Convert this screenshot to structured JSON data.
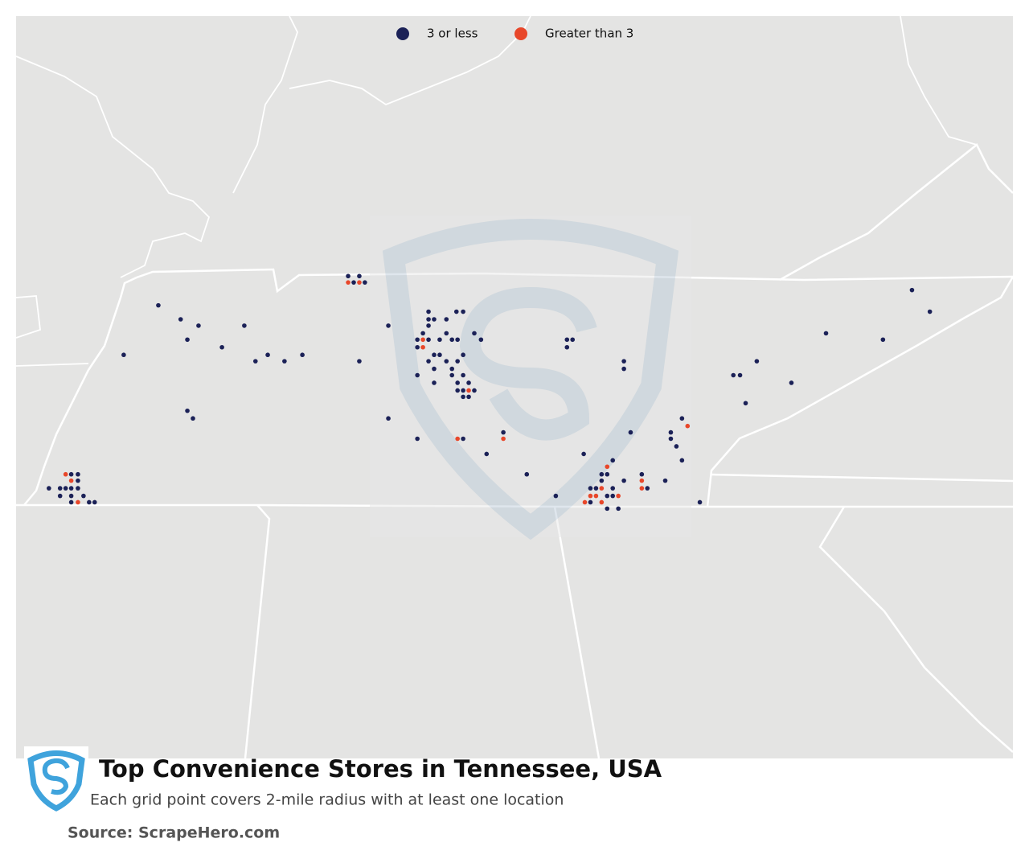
{
  "chart_data": {
    "type": "map",
    "title": "Top Convenience Stores in Tennessee, USA",
    "subtitle": "Each grid point covers 2-mile radius with at least one location",
    "source": "Source: ScrapeHero.com",
    "series": [
      {
        "name": "3 or less",
        "color": "#1b2157",
        "lon": [
          -87.58,
          -87.48,
          -87.53,
          -87.43,
          -89.28,
          -89.08,
          -88.92,
          -89.02,
          -88.51,
          -88.71,
          -89.59,
          -88.41,
          -88.3,
          -88.15,
          -87.99,
          -87.48,
          -89.02,
          -88.97,
          -87.22,
          -86.86,
          -86.61,
          -86.55,
          -86.86,
          -86.81,
          -86.7,
          -86.86,
          -86.7,
          -86.45,
          -86.39,
          -86.91,
          -86.96,
          -86.86,
          -86.76,
          -86.65,
          -86.6,
          -86.96,
          -86.81,
          -86.76,
          -86.55,
          -86.86,
          -86.7,
          -86.6,
          -86.65,
          -86.81,
          -86.96,
          -86.65,
          -86.55,
          -86.5,
          -86.6,
          -86.81,
          -86.6,
          -86.55,
          -86.45,
          -86.55,
          -86.5,
          -87.22,
          -86.96,
          -86.55,
          -86.19,
          -86.34,
          -85.98,
          -85.72,
          -85.62,
          -85.57,
          -85.62,
          -85.11,
          -85.11,
          -85.05,
          -85.47,
          -85.21,
          -85.31,
          -85.26,
          -85.31,
          -85.11,
          -84.95,
          -84.74,
          -85.41,
          -85.36,
          -85.21,
          -84.9,
          -85.26,
          -85.21,
          -85.41,
          -85.26,
          -85.16,
          -84.59,
          -84.69,
          -84.69,
          -84.64,
          -84.59,
          -84.43,
          -84.13,
          -84.07,
          -83.92,
          -84.02,
          -83.61,
          -83.3,
          -82.79,
          -82.53,
          -82.37,
          -90.06,
          -90.0,
          -90.0,
          -90.26,
          -90.16,
          -90.11,
          -90.06,
          -90.0,
          -90.16,
          -90.06,
          -89.95,
          -90.06,
          -89.9,
          -89.85
        ],
        "lat": [
          36.77,
          36.77,
          36.72,
          36.72,
          36.54,
          36.43,
          36.38,
          36.27,
          36.38,
          36.21,
          36.15,
          36.1,
          36.15,
          36.1,
          36.15,
          36.1,
          35.71,
          35.65,
          36.38,
          36.49,
          36.49,
          36.49,
          36.43,
          36.43,
          36.43,
          36.38,
          36.32,
          36.32,
          36.27,
          36.32,
          36.27,
          36.27,
          36.27,
          36.27,
          36.27,
          36.21,
          36.15,
          36.15,
          36.15,
          36.1,
          36.1,
          36.1,
          36.04,
          36.04,
          35.99,
          35.99,
          35.99,
          35.93,
          35.93,
          35.93,
          35.87,
          35.87,
          35.87,
          35.82,
          35.82,
          35.65,
          35.49,
          35.49,
          35.54,
          35.37,
          35.21,
          35.04,
          36.27,
          36.27,
          36.21,
          36.1,
          36.04,
          35.54,
          35.37,
          35.32,
          35.21,
          35.21,
          35.16,
          35.16,
          35.21,
          35.16,
          35.1,
          35.1,
          35.1,
          35.1,
          35.04,
          35.04,
          34.99,
          34.94,
          34.94,
          35.65,
          35.54,
          35.49,
          35.43,
          35.32,
          34.99,
          35.99,
          35.99,
          36.1,
          35.77,
          35.93,
          36.32,
          36.27,
          36.66,
          36.49,
          35.21,
          35.21,
          35.16,
          35.1,
          35.1,
          35.1,
          35.1,
          35.1,
          35.04,
          35.04,
          35.04,
          34.99,
          34.99,
          34.99
        ]
      },
      {
        "name": "Greater than 3",
        "color": "#e8472a",
        "lon": [
          -87.58,
          -87.48,
          -86.91,
          -86.91,
          -86.5,
          -86.6,
          -86.19,
          -85.26,
          -85.31,
          -84.95,
          -84.95,
          -85.41,
          -85.36,
          -85.16,
          -85.46,
          -85.31,
          -84.54,
          -90.11,
          -90.06,
          -90.0
        ],
        "lat": [
          36.72,
          36.72,
          36.27,
          36.21,
          35.87,
          35.49,
          35.49,
          35.27,
          35.1,
          35.16,
          35.1,
          35.04,
          35.04,
          35.04,
          34.99,
          34.99,
          35.59,
          35.21,
          35.16,
          34.99
        ]
      }
    ]
  }
}
